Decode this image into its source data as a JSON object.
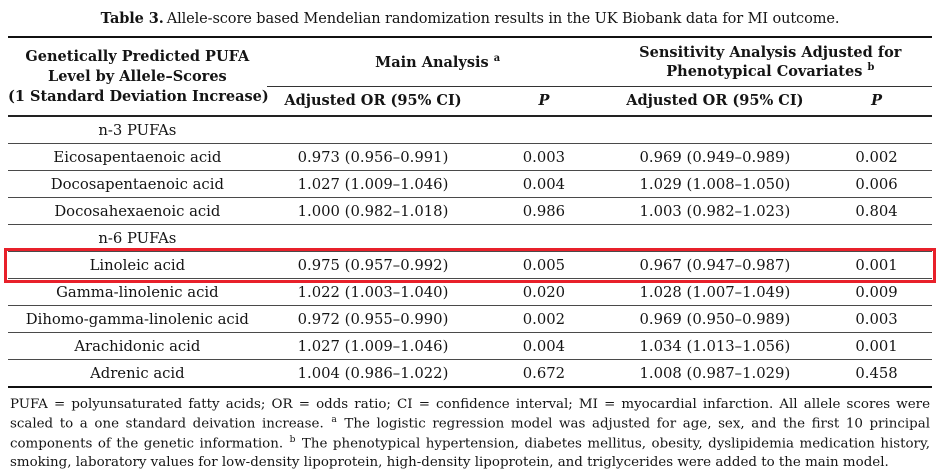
{
  "caption": {
    "label": "Table 3.",
    "text": "Allele-score based Mendelian randomization results in the UK Biobank data for MI outcome."
  },
  "table": {
    "stub_header": [
      "Genetically Predicted PUFA",
      "Level by Allele–Scores",
      "(1 Standard Deviation Increase)"
    ],
    "groups": [
      {
        "label": "Main Analysis",
        "sup": "a"
      },
      {
        "label": "Sensitivity Analysis Adjusted for Phenotypical Covariates",
        "sup": "b"
      }
    ],
    "subheaders": [
      "Adjusted OR (95% CI)",
      "P",
      "Adjusted OR (95% CI)",
      "P"
    ],
    "rows": [
      {
        "type": "section",
        "name": "n-3 PUFAs"
      },
      {
        "type": "data",
        "name": "Eicosapentaenoic acid",
        "main_or": "0.973 (0.956–0.991)",
        "main_p": "0.003",
        "sens_or": "0.969 (0.949–0.989)",
        "sens_p": "0.002"
      },
      {
        "type": "data",
        "name": "Docosapentaenoic acid",
        "main_or": "1.027 (1.009–1.046)",
        "main_p": "0.004",
        "sens_or": "1.029 (1.008–1.050)",
        "sens_p": "0.006"
      },
      {
        "type": "data",
        "name": "Docosahexaenoic acid",
        "main_or": "1.000 (0.982–1.018)",
        "main_p": "0.986",
        "sens_or": "1.003 (0.982–1.023)",
        "sens_p": "0.804"
      },
      {
        "type": "section",
        "name": "n-6 PUFAs"
      },
      {
        "type": "data",
        "highlighted": true,
        "name": "Linoleic acid",
        "main_or": "0.975 (0.957–0.992)",
        "main_p": "0.005",
        "sens_or": "0.967 (0.947–0.987)",
        "sens_p": "0.001"
      },
      {
        "type": "data",
        "name": "Gamma-linolenic acid",
        "main_or": "1.022 (1.003–1.040)",
        "main_p": "0.020",
        "sens_or": "1.028 (1.007–1.049)",
        "sens_p": "0.009"
      },
      {
        "type": "data",
        "name": "Dihomo-gamma-linolenic acid",
        "main_or": "0.972 (0.955–0.990)",
        "main_p": "0.002",
        "sens_or": "0.969 (0.950–0.989)",
        "sens_p": "0.003"
      },
      {
        "type": "data",
        "name": "Arachidonic acid",
        "main_or": "1.027 (1.009–1.046)",
        "main_p": "0.004",
        "sens_or": "1.034 (1.013–1.056)",
        "sens_p": "0.001"
      },
      {
        "type": "data",
        "name": "Adrenic acid",
        "main_or": "1.004 (0.986–1.022)",
        "main_p": "0.672",
        "sens_or": "1.008 (0.987–1.029)",
        "sens_p": "0.458"
      }
    ]
  },
  "footnote": {
    "segments": [
      {
        "t": "PUFA = polyunsaturated fatty acids; OR = odds ratio; CI = confidence interval; MI = myocardial infarction. All allele scores were scaled to a one standard deivation increase. ",
        "sup": false
      },
      {
        "t": "a",
        "sup": true
      },
      {
        "t": " The logistic regression model was adjusted for age, sex, and the first 10 principal components of the genetic information. ",
        "sup": false
      },
      {
        "t": "b",
        "sup": true
      },
      {
        "t": " The phenotypical hypertension, diabetes mellitus, obesity, dyslipidemia medication history, smoking, laboratory values for low-density lipoprotein, high-density lipoprotein, and triglycerides were added to the main model.",
        "sup": false
      }
    ]
  },
  "colors": {
    "highlight_border": "#e8202a",
    "rule_heavy": "#111111",
    "rule_light": "#4a4a4a"
  }
}
